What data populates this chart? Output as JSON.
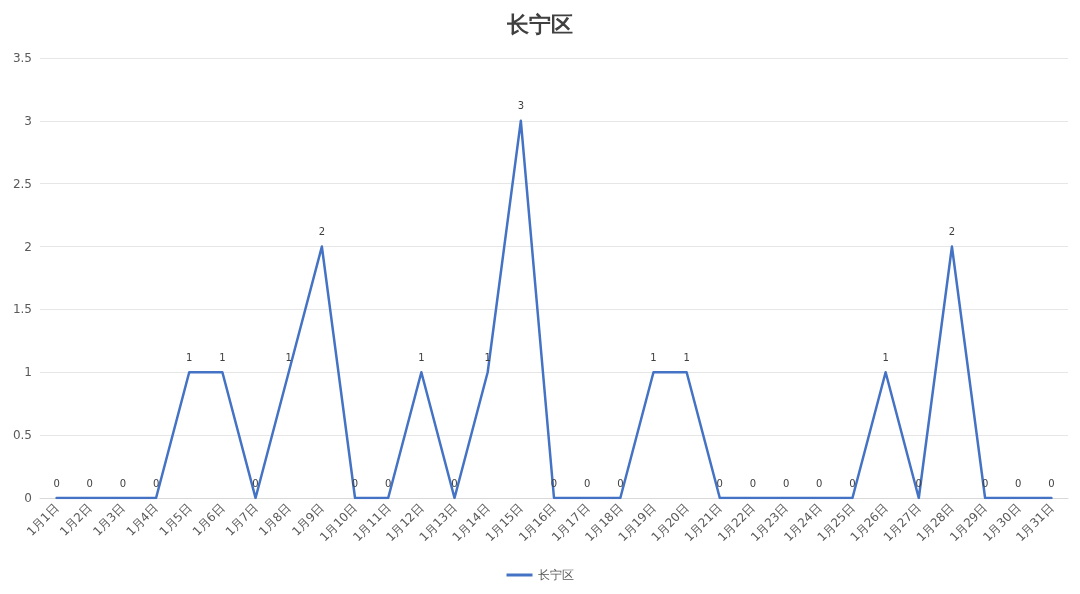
{
  "chart_data": {
    "type": "line",
    "title": "长宁区",
    "categories": [
      "1月1日",
      "1月2日",
      "1月3日",
      "1月4日",
      "1月5日",
      "1月6日",
      "1月7日",
      "1月8日",
      "1月9日",
      "1月10日",
      "1月11日",
      "1月12日",
      "1月13日",
      "1月14日",
      "1月15日",
      "1月16日",
      "1月17日",
      "1月18日",
      "1月19日",
      "1月20日",
      "1月21日",
      "1月22日",
      "1月23日",
      "1月24日",
      "1月25日",
      "1月26日",
      "1月27日",
      "1月28日",
      "1月29日",
      "1月30日",
      "1月31日"
    ],
    "series": [
      {
        "name": "长宁区",
        "color": "#4472c4",
        "values": [
          0,
          0,
          0,
          0,
          1,
          1,
          0,
          1,
          2,
          0,
          0,
          1,
          0,
          1,
          3,
          0,
          0,
          0,
          1,
          1,
          0,
          0,
          0,
          0,
          0,
          1,
          0,
          2,
          0,
          0,
          0
        ]
      }
    ],
    "ylim": [
      0,
      3.5
    ],
    "yticks": [
      0,
      0.5,
      1,
      1.5,
      2,
      2.5,
      3,
      3.5
    ],
    "grid": "y",
    "legend": "bottom",
    "marker": "none",
    "line_style": "solid",
    "data_labels": true
  }
}
